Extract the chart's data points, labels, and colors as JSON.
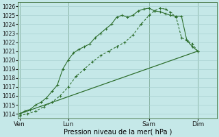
{
  "xlabel": "Pression niveau de la mer( hPa )",
  "bg_color": "#c5e8e8",
  "grid_color": "#a8d0d0",
  "line_color": "#2d6e2d",
  "vline_color": "#4a7a4a",
  "ylim": [
    1013.5,
    1026.5
  ],
  "xlim": [
    -0.1,
    12.2
  ],
  "yticks": [
    1014,
    1015,
    1016,
    1017,
    1018,
    1019,
    1020,
    1021,
    1022,
    1023,
    1024,
    1025,
    1026
  ],
  "xtick_labels": [
    "Ven",
    "Lun",
    "Sam",
    "Dim"
  ],
  "xtick_positions": [
    0.0,
    3.0,
    8.0,
    11.0
  ],
  "vlines": [
    0.0,
    3.0,
    8.0,
    11.0
  ],
  "line1_x": [
    0,
    0.33,
    0.67,
    1.0,
    1.33,
    1.67,
    2.0,
    2.33,
    2.67,
    3.0,
    3.33,
    3.67,
    4.0,
    4.33,
    4.67,
    5.0,
    5.33,
    5.67,
    6.0,
    6.33,
    6.67,
    7.0,
    7.33,
    7.67,
    8.0,
    8.33,
    8.67,
    9.0,
    9.33,
    9.67,
    10.0,
    10.33,
    10.67,
    11.0
  ],
  "line1_y": [
    1014.0,
    1014.3,
    1014.5,
    1015.0,
    1015.3,
    1015.8,
    1016.5,
    1017.2,
    1019.0,
    1020.0,
    1020.8,
    1021.2,
    1021.5,
    1021.8,
    1022.5,
    1023.0,
    1023.5,
    1024.0,
    1024.8,
    1025.0,
    1024.8,
    1025.0,
    1025.5,
    1025.7,
    1025.8,
    1025.5,
    1025.4,
    1025.2,
    1025.0,
    1024.9,
    1024.9,
    1022.2,
    1021.5,
    1021.0
  ],
  "line2_x": [
    0,
    0.5,
    1.0,
    1.5,
    2.0,
    2.5,
    3.0,
    3.5,
    4.0,
    4.5,
    5.0,
    5.5,
    6.0,
    6.5,
    7.0,
    7.5,
    8.0,
    8.33,
    8.67,
    9.0,
    9.33,
    9.67,
    10.0,
    10.33,
    10.67,
    11.0
  ],
  "line2_y": [
    1013.8,
    1014.0,
    1014.3,
    1014.8,
    1015.3,
    1016.0,
    1017.0,
    1018.2,
    1019.0,
    1019.8,
    1020.5,
    1021.0,
    1021.5,
    1022.0,
    1022.8,
    1024.0,
    1025.0,
    1025.5,
    1025.8,
    1025.7,
    1025.3,
    1024.8,
    1022.5,
    1022.2,
    1021.8,
    1021.0
  ],
  "line3_x": [
    0,
    11.0
  ],
  "line3_y": [
    1014.0,
    1021.0
  ],
  "ytick_fontsize": 5.5,
  "xtick_fontsize": 6.5,
  "xlabel_fontsize": 7
}
